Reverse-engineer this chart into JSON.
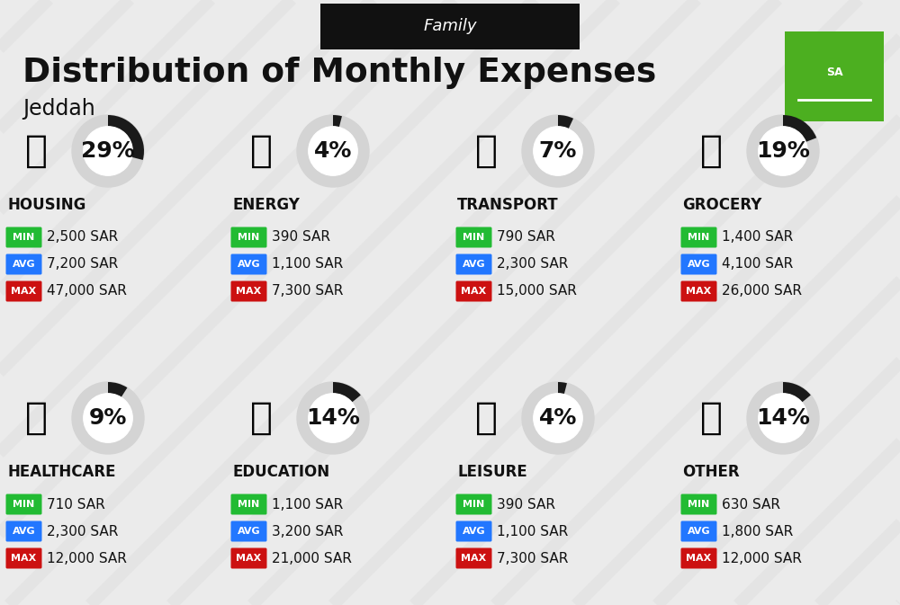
{
  "title": "Distribution of Monthly Expenses",
  "subtitle": "Jeddah",
  "header_label": "Family",
  "bg_color": "#ebebeb",
  "header_bg": "#111111",
  "header_text_color": "#ffffff",
  "title_color": "#111111",
  "subtitle_color": "#111111",
  "label_color": "#111111",
  "green_color": "#22bb33",
  "blue_color": "#2277ff",
  "red_color": "#cc1111",
  "circle_bg": "#d4d4d4",
  "wedge_color": "#1a1a1a",
  "flag_bg": "#4caf20",
  "categories": [
    {
      "name": "HOUSING",
      "pct": 29,
      "min_val": "2,500 SAR",
      "avg_val": "7,200 SAR",
      "max_val": "47,000 SAR",
      "emoji_idx": 0,
      "row": 0,
      "col": 0
    },
    {
      "name": "ENERGY",
      "pct": 4,
      "min_val": "390 SAR",
      "avg_val": "1,100 SAR",
      "max_val": "7,300 SAR",
      "emoji_idx": 1,
      "row": 0,
      "col": 1
    },
    {
      "name": "TRANSPORT",
      "pct": 7,
      "min_val": "790 SAR",
      "avg_val": "2,300 SAR",
      "max_val": "15,000 SAR",
      "emoji_idx": 2,
      "row": 0,
      "col": 2
    },
    {
      "name": "GROCERY",
      "pct": 19,
      "min_val": "1,400 SAR",
      "avg_val": "4,100 SAR",
      "max_val": "26,000 SAR",
      "emoji_idx": 3,
      "row": 0,
      "col": 3
    },
    {
      "name": "HEALTHCARE",
      "pct": 9,
      "min_val": "710 SAR",
      "avg_val": "2,300 SAR",
      "max_val": "12,000 SAR",
      "emoji_idx": 4,
      "row": 1,
      "col": 0
    },
    {
      "name": "EDUCATION",
      "pct": 14,
      "min_val": "1,100 SAR",
      "avg_val": "3,200 SAR",
      "max_val": "21,000 SAR",
      "emoji_idx": 5,
      "row": 1,
      "col": 1
    },
    {
      "name": "LEISURE",
      "pct": 4,
      "min_val": "390 SAR",
      "avg_val": "1,100 SAR",
      "max_val": "7,300 SAR",
      "emoji_idx": 6,
      "row": 1,
      "col": 2
    },
    {
      "name": "OTHER",
      "pct": 14,
      "min_val": "630 SAR",
      "avg_val": "1,800 SAR",
      "max_val": "12,000 SAR",
      "emoji_idx": 7,
      "row": 1,
      "col": 3
    }
  ],
  "diagonal_stripe_color": "#d0d0d0",
  "value_fontsize": 11,
  "pct_fontsize": 18,
  "cat_fontsize": 12
}
